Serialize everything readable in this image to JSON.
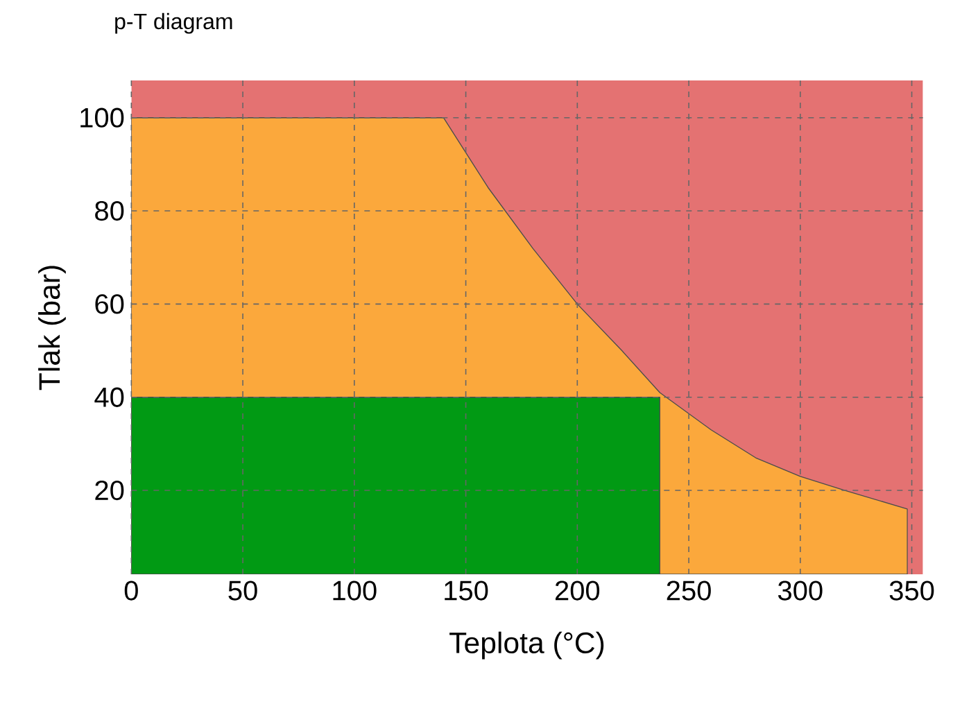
{
  "chart_data": {
    "type": "area",
    "title": "p-T diagram",
    "xlabel": "Teplota (°C)",
    "ylabel": "Tlak (bar)",
    "xlim": [
      0,
      355
    ],
    "ylim": [
      2,
      108
    ],
    "xticks": [
      0,
      50,
      100,
      150,
      200,
      250,
      300,
      350
    ],
    "yticks": [
      20,
      40,
      60,
      80,
      100
    ],
    "grid": true,
    "bands": [
      {
        "axis": "y",
        "from": 2,
        "to": 108,
        "color": "#e47272"
      }
    ],
    "series": [
      {
        "color": "#fba83c",
        "x": [
          0,
          140,
          160,
          180,
          200,
          220,
          237,
          260,
          280,
          300,
          320,
          348
        ],
        "values": [
          100,
          100,
          85,
          72,
          60,
          50,
          41,
          33,
          27,
          23,
          20,
          16
        ]
      },
      {
        "color": "#019a14",
        "x": [
          0,
          237
        ],
        "values": [
          40,
          40
        ]
      }
    ]
  }
}
